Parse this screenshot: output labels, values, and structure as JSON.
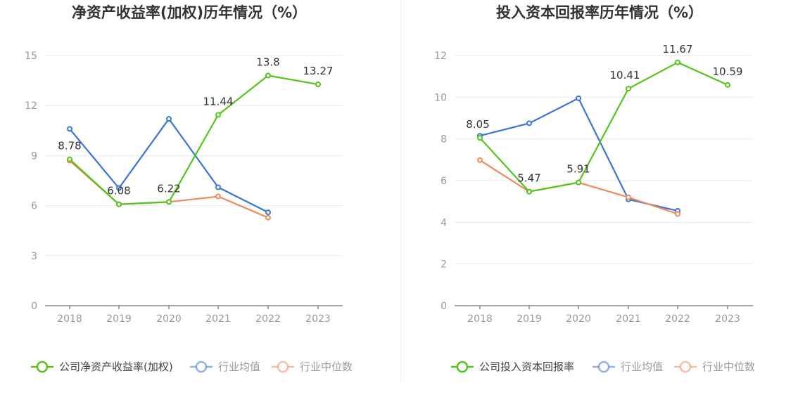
{
  "chart_data": [
    {
      "type": "line",
      "title": "净资产收益率(加权)历年情况（%）",
      "categories": [
        "2018",
        "2019",
        "2020",
        "2021",
        "2022",
        "2023"
      ],
      "ylim": [
        0,
        15
      ],
      "yticks": [
        0,
        3,
        6,
        9,
        12,
        15
      ],
      "grid": true,
      "legend_position": "bottom",
      "series": [
        {
          "name": "公司净资产收益率(加权)",
          "color": "#52c41a",
          "values": [
            8.78,
            6.08,
            6.22,
            11.44,
            13.8,
            13.27
          ],
          "labels": [
            "8.78",
            "6.08",
            "6.22",
            "11.44",
            "13.8",
            "13.27"
          ]
        },
        {
          "name": "行业均值",
          "color": "#3a75d6",
          "values": [
            10.6,
            7.05,
            11.2,
            7.1,
            5.6,
            null
          ]
        },
        {
          "name": "行业中位数",
          "color": "#ef8a5a",
          "values": [
            8.7,
            6.08,
            6.22,
            6.55,
            5.28,
            null
          ]
        }
      ]
    },
    {
      "type": "line",
      "title": "投入资本回报率历年情况（%）",
      "categories": [
        "2018",
        "2019",
        "2020",
        "2021",
        "2022",
        "2023"
      ],
      "ylim": [
        0,
        12
      ],
      "yticks": [
        0,
        2,
        4,
        6,
        8,
        10,
        12
      ],
      "grid": true,
      "legend_position": "bottom",
      "series": [
        {
          "name": "公司投入资本回报率",
          "color": "#52c41a",
          "values": [
            8.05,
            5.47,
            5.91,
            10.41,
            11.67,
            10.59
          ],
          "labels": [
            "8.05",
            "5.47",
            "5.91",
            "10.41",
            "11.67",
            "10.59"
          ]
        },
        {
          "name": "行业均值",
          "color": "#3a75d6",
          "values": [
            8.15,
            8.75,
            9.95,
            5.1,
            4.55,
            null
          ]
        },
        {
          "name": "行业中位数",
          "color": "#ef8a5a",
          "values": [
            6.98,
            5.47,
            5.91,
            5.2,
            4.4,
            null
          ]
        }
      ]
    }
  ]
}
